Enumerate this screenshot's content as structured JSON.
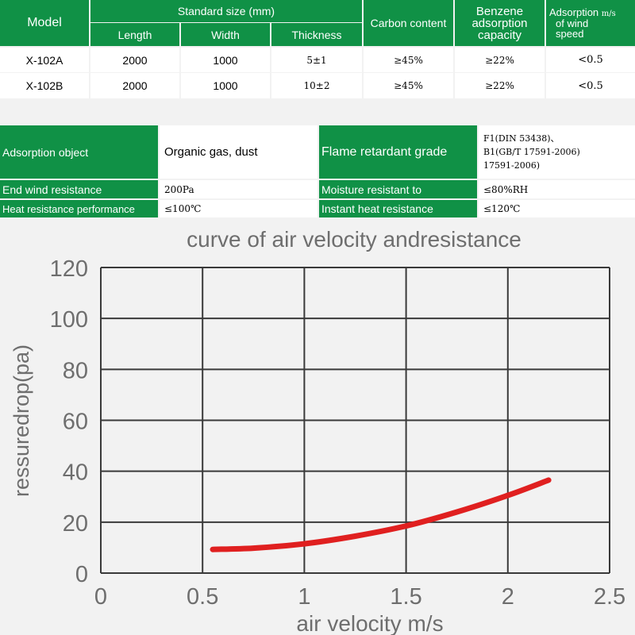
{
  "spec_table": {
    "headers": {
      "model": "Model",
      "standard_size": "Standard size (mm)",
      "length": "Length",
      "width": "Width",
      "thickness": "Thickness",
      "carbon": "Carbon content",
      "benzene_l1": "Benzene",
      "benzene_l2": "adsorption",
      "benzene_l3": "capacity",
      "speed_l1": "Adsorption",
      "speed_unit": "m/s",
      "speed_l2": "of wind",
      "speed_l3": "speed"
    },
    "rows": [
      {
        "model": "X-102A",
        "length": "2000",
        "width": "1000",
        "thickness": "5±1",
        "carbon": "≥45%",
        "benzene": "≥22%",
        "speed": "<0.5"
      },
      {
        "model": "X-102B",
        "length": "2000",
        "width": "1000",
        "thickness": "10±2",
        "carbon": "≥45%",
        "benzene": "≥22%",
        "speed": "<0.5"
      }
    ]
  },
  "props_table": {
    "adsorption_object_label": "Adsorption object",
    "adsorption_object_value": "Organic gas, dust",
    "flame_label": "Flame retardant grade",
    "flame_l1": "F1(DIN 53438)、",
    "flame_l2": "B1(GB/T 17591-2006)",
    "flame_l3": "17591-2006)",
    "end_wind_label": "End wind resistance",
    "end_wind_value": "200Pa",
    "moisture_label": "Moisture resistant to",
    "moisture_value": "≤80%RH",
    "heat_label": "Heat resistance performance",
    "heat_value": "≤100℃",
    "instant_label": "Instant heat resistance",
    "instant_value": "≤120℃"
  },
  "chart_data": {
    "type": "line",
    "title": "curve of air velocity andresistance",
    "xlabel": "air velocity m/s",
    "ylabel": "ressuredrop(pa)",
    "xlim": [
      0,
      2.5
    ],
    "ylim": [
      0,
      120
    ],
    "xticks": [
      "0",
      "0.5",
      "1",
      "1.5",
      "2",
      "2.5"
    ],
    "yticks": [
      "0",
      "20",
      "40",
      "60",
      "80",
      "100",
      "120"
    ],
    "grid": true,
    "series_color": "#e02020",
    "x": [
      0.55,
      0.75,
      1.0,
      1.25,
      1.5,
      1.75,
      2.0,
      2.2
    ],
    "y": [
      9.3,
      9.8,
      11.5,
      14.5,
      18.5,
      24.0,
      30.5,
      36.5
    ]
  }
}
